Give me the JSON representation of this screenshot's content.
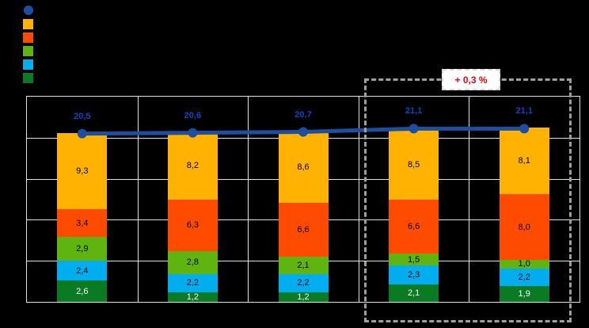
{
  "window": {
    "background": "#000000"
  },
  "legend": {
    "position": "top-left",
    "labels_visible": false,
    "items": [
      {
        "icon": "line-series-dot-icon",
        "shape": "circle",
        "color": "#1C4FA1"
      },
      {
        "icon": "orange-series-icon",
        "shape": "square",
        "color": "#FFB200"
      },
      {
        "icon": "red-orange-series-icon",
        "shape": "square",
        "color": "#FF4B00"
      },
      {
        "icon": "green-series-icon",
        "shape": "square",
        "color": "#60B410"
      },
      {
        "icon": "light-blue-series-icon",
        "shape": "square",
        "color": "#00AEEF"
      },
      {
        "icon": "dark-green-series-icon",
        "shape": "square",
        "color": "#0A7B23"
      }
    ]
  },
  "chart_data": {
    "type": "bar",
    "subtype": "stacked-bars-with-total-line",
    "categories": [
      "",
      "",
      "",
      "",
      ""
    ],
    "stacking_order": "bottom-to-top",
    "series": [
      {
        "name": "dark-green-segment",
        "color": "#0A7B23",
        "label_color": "#FFFFFF",
        "values": [
          2.6,
          1.2,
          1.2,
          2.1,
          1.9
        ]
      },
      {
        "name": "light-blue-segment",
        "color": "#00AEEF",
        "label_color": "#000000",
        "values": [
          2.4,
          2.2,
          2.2,
          2.3,
          2.2
        ]
      },
      {
        "name": "green-segment",
        "color": "#60B410",
        "label_color": "#000000",
        "values": [
          2.9,
          2.8,
          2.1,
          1.5,
          1.0
        ]
      },
      {
        "name": "red-orange-segment",
        "color": "#FF4B00",
        "label_color": "#000000",
        "values": [
          3.4,
          6.3,
          6.6,
          6.6,
          8.0
        ]
      },
      {
        "name": "orange-segment",
        "color": "#FFB200",
        "label_color": "#000000",
        "values": [
          9.3,
          8.2,
          8.6,
          8.5,
          8.1
        ]
      }
    ],
    "line": {
      "name": "total-line",
      "color": "#1C4FA1",
      "label_color": "#0049C8",
      "values": [
        20.5,
        20.6,
        20.7,
        21.1,
        21.1
      ]
    },
    "ylim": [
      0,
      25
    ],
    "grid_step": 5,
    "grid": true,
    "decimal_separator": ",",
    "annotation": {
      "text": "+ 0,3 %",
      "color": "#E30613",
      "applies_to_last_categories": 2
    }
  }
}
